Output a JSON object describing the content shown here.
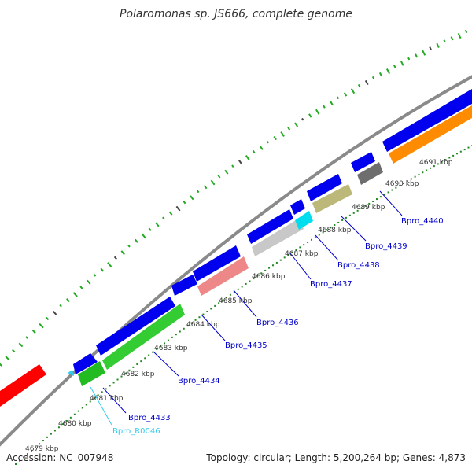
{
  "title": "Polaromonas sp. JS666, complete genome",
  "footer": {
    "accession": "Accession: NC_007948",
    "info": "Topology: circular; Length: 5,200,264 bp; Genes: 4,873"
  },
  "kbp_labels": [
    "4679 kbp",
    "4680 kbp",
    "4681 kbp",
    "4682 kbp",
    "4683 kbp",
    "4684 kbp",
    "4685 kbp",
    "4686 kbp",
    "4687 kbp",
    "4688 kbp",
    "4689 kbp",
    "4690 kbp",
    "4691 kbp"
  ],
  "gene_labels": [
    {
      "text": "Bpro_R0046",
      "color": "#33ccee"
    },
    {
      "text": "Bpro_4433",
      "color": "#0000cc"
    },
    {
      "text": "Bpro_4434",
      "color": "#0000cc"
    },
    {
      "text": "Bpro_4435",
      "color": "#0000cc"
    },
    {
      "text": "Bpro_4436",
      "color": "#0000cc"
    },
    {
      "text": "Bpro_4437",
      "color": "#0000cc"
    },
    {
      "text": "Bpro_4438",
      "color": "#0000cc"
    },
    {
      "text": "Bpro_4439",
      "color": "#0000cc"
    },
    {
      "text": "Bpro_4440",
      "color": "#0000cc"
    }
  ],
  "colors": {
    "forward": "#0000ee",
    "red": "#ff0000",
    "green": "#33cc33",
    "pink": "#ee8888",
    "lightgray": "#c8c8c8",
    "cyan": "#00ddee",
    "khaki": "#bbb87a",
    "darkgray": "#707070",
    "orange": "#ff8c00",
    "backbone": "#888888",
    "gc_dots": "#22aa22"
  }
}
